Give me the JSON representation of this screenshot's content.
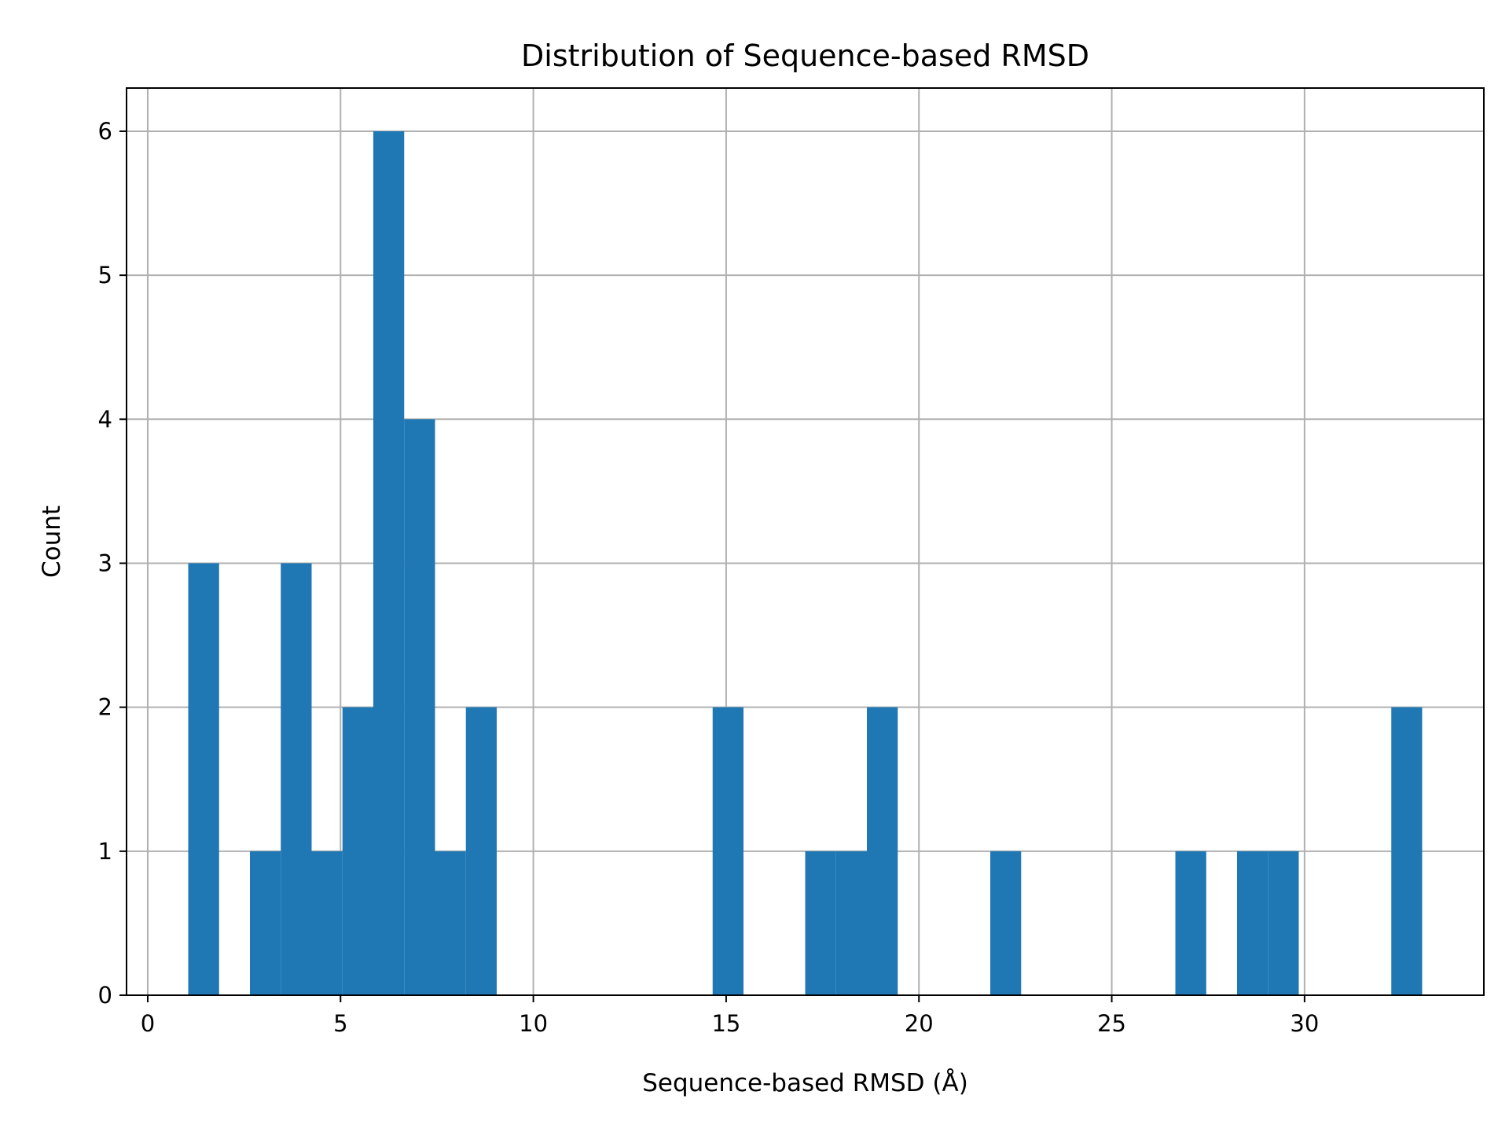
{
  "chart_data": {
    "type": "bar",
    "title": "Distribution of Sequence-based RMSD",
    "xlabel": "Sequence-based RMSD (Å)",
    "ylabel": "Count",
    "xlim": [
      -0.55,
      34.65
    ],
    "ylim": [
      0,
      6.3
    ],
    "xticks": [
      "0",
      "5",
      "10",
      "15",
      "20",
      "25",
      "30"
    ],
    "yticks": [
      "0",
      "1",
      "2",
      "3",
      "4",
      "5",
      "6"
    ],
    "grid": true,
    "bin_width": 0.8,
    "bins": [
      {
        "x0": 1.05,
        "count": 3
      },
      {
        "x0": 2.65,
        "count": 1
      },
      {
        "x0": 3.45,
        "count": 3
      },
      {
        "x0": 4.25,
        "count": 1
      },
      {
        "x0": 5.05,
        "count": 2
      },
      {
        "x0": 5.85,
        "count": 6
      },
      {
        "x0": 6.65,
        "count": 4
      },
      {
        "x0": 7.45,
        "count": 1
      },
      {
        "x0": 8.25,
        "count": 2
      },
      {
        "x0": 14.65,
        "count": 2
      },
      {
        "x0": 17.05,
        "count": 1
      },
      {
        "x0": 17.85,
        "count": 1
      },
      {
        "x0": 18.65,
        "count": 2
      },
      {
        "x0": 21.85,
        "count": 1
      },
      {
        "x0": 26.65,
        "count": 1
      },
      {
        "x0": 28.25,
        "count": 1
      },
      {
        "x0": 29.05,
        "count": 1
      },
      {
        "x0": 32.25,
        "count": 2
      }
    ],
    "bar_color": "#1f77b4",
    "grid_color": "#b0b0b0"
  }
}
